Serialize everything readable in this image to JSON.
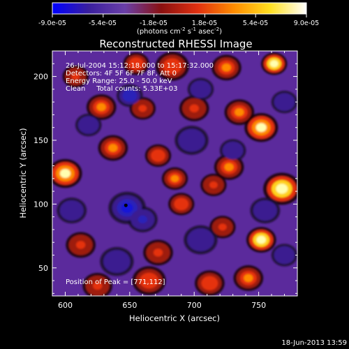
{
  "colorbar": {
    "ticks": [
      "-9.0e-05",
      "-5.4e-05",
      "-1.8e-05",
      "1.8e-05",
      "5.4e-05",
      "9.0e-05"
    ],
    "unit_main": "(photons cm",
    "unit_exp1": "-2",
    "unit_mid": " s",
    "unit_exp2": "-1",
    "unit_end": " asec",
    "unit_exp3": "-2",
    "unit_close": ")",
    "colors": [
      "#0000ff",
      "#3a1f9e",
      "#6a3fa8",
      "#8a1010",
      "#e03010",
      "#ff8c00",
      "#ffe020",
      "#ffffff"
    ]
  },
  "chart_data": {
    "type": "heatmap",
    "title": "Reconstructed RHESSI Image",
    "xlabel": "Heliocentric X (arcsec)",
    "ylabel": "Heliocentric Y (arcsec)",
    "xlim": [
      590,
      780
    ],
    "ylim": [
      28,
      220
    ],
    "xticks": [
      600,
      650,
      700,
      750
    ],
    "yticks": [
      50,
      100,
      150,
      200
    ],
    "value_range": [
      -9e-05,
      9e-05
    ],
    "annotations": [
      "26-Jul-2004 15:12:18.000 to 15:17:32.000",
      "Detectors: 4F 5F 6F 7F 8F, Att 0",
      "Energy Range: 25.0 - 50.0 keV",
      "Clean     Total counts: 5.33E+03"
    ],
    "peak_label": "Position of Peak = [771,112]",
    "marker": {
      "x": 647,
      "y": 99
    },
    "blobs": [
      {
        "x": 762,
        "y": 210,
        "v": 1.0,
        "s": 7
      },
      {
        "x": 725,
        "y": 207,
        "v": 0.55,
        "s": 8
      },
      {
        "x": 683,
        "y": 208,
        "v": 0.5,
        "s": 9
      },
      {
        "x": 655,
        "y": 210,
        "v": 0.5,
        "s": 7
      },
      {
        "x": 608,
        "y": 200,
        "v": 0.35,
        "s": 7
      },
      {
        "x": 628,
        "y": 176,
        "v": 0.55,
        "s": 8
      },
      {
        "x": 660,
        "y": 175,
        "v": 0.4,
        "s": 7
      },
      {
        "x": 700,
        "y": 175,
        "v": 0.45,
        "s": 8
      },
      {
        "x": 735,
        "y": 172,
        "v": 0.7,
        "s": 8
      },
      {
        "x": 752,
        "y": 160,
        "v": 0.9,
        "s": 9
      },
      {
        "x": 600,
        "y": 124,
        "v": 0.9,
        "s": 9
      },
      {
        "x": 637,
        "y": 144,
        "v": 0.55,
        "s": 8
      },
      {
        "x": 672,
        "y": 138,
        "v": 0.5,
        "s": 7
      },
      {
        "x": 685,
        "y": 120,
        "v": 0.65,
        "s": 7
      },
      {
        "x": 690,
        "y": 100,
        "v": 0.5,
        "s": 7
      },
      {
        "x": 715,
        "y": 115,
        "v": 0.45,
        "s": 7
      },
      {
        "x": 727,
        "y": 129,
        "v": 0.65,
        "s": 8
      },
      {
        "x": 768,
        "y": 112,
        "v": 1.0,
        "s": 10
      },
      {
        "x": 752,
        "y": 72,
        "v": 1.0,
        "s": 8
      },
      {
        "x": 722,
        "y": 82,
        "v": 0.45,
        "s": 7
      },
      {
        "x": 742,
        "y": 42,
        "v": 0.55,
        "s": 8
      },
      {
        "x": 712,
        "y": 38,
        "v": 0.5,
        "s": 8
      },
      {
        "x": 665,
        "y": 40,
        "v": 0.5,
        "s": 9
      },
      {
        "x": 625,
        "y": 36,
        "v": 0.4,
        "s": 8
      },
      {
        "x": 672,
        "y": 62,
        "v": 0.4,
        "s": 8
      },
      {
        "x": 612,
        "y": 68,
        "v": 0.35,
        "s": 8
      },
      {
        "x": 648,
        "y": 97,
        "v": -1.0,
        "s": 10
      },
      {
        "x": 660,
        "y": 88,
        "v": -0.7,
        "s": 8
      },
      {
        "x": 650,
        "y": 185,
        "v": -0.8,
        "s": 7
      },
      {
        "x": 705,
        "y": 190,
        "v": -0.5,
        "s": 7
      },
      {
        "x": 730,
        "y": 142,
        "v": -0.5,
        "s": 7
      },
      {
        "x": 618,
        "y": 162,
        "v": -0.4,
        "s": 7
      },
      {
        "x": 605,
        "y": 95,
        "v": -0.45,
        "s": 8
      },
      {
        "x": 698,
        "y": 150,
        "v": -0.35,
        "s": 9
      },
      {
        "x": 755,
        "y": 95,
        "v": -0.35,
        "s": 8
      },
      {
        "x": 705,
        "y": 72,
        "v": -0.35,
        "s": 9
      },
      {
        "x": 640,
        "y": 55,
        "v": -0.3,
        "s": 9
      },
      {
        "x": 770,
        "y": 60,
        "v": -0.3,
        "s": 7
      },
      {
        "x": 770,
        "y": 180,
        "v": -0.3,
        "s": 7
      }
    ]
  },
  "footer_date": "18-Jun-2013 13:59"
}
